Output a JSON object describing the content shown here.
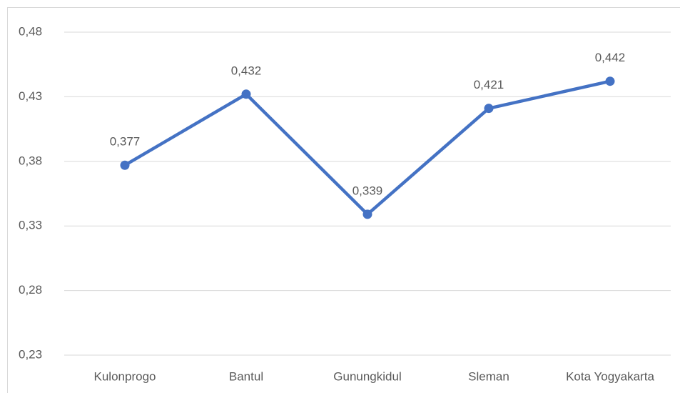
{
  "chart_data": {
    "type": "line",
    "categories": [
      "Kulonprogo",
      "Bantul",
      "Gunungkidul",
      "Sleman",
      "Kota Yogyakarta"
    ],
    "series": [
      {
        "color": "#4472c4",
        "values": [
          0.377,
          0.432,
          0.339,
          0.421,
          0.442
        ],
        "value_labels": [
          "0,377",
          "0,432",
          "0,339",
          "0,421",
          "0,442"
        ]
      }
    ],
    "ylim": [
      0.23,
      0.48
    ],
    "yticks": [
      {
        "value": 0.23,
        "label": "0,23"
      },
      {
        "value": 0.28,
        "label": "0,28"
      },
      {
        "value": 0.33,
        "label": "0,33"
      },
      {
        "value": 0.38,
        "label": "0,38"
      },
      {
        "value": 0.43,
        "label": "0,43"
      },
      {
        "value": 0.48,
        "label": "0,48"
      }
    ],
    "grid": true
  }
}
